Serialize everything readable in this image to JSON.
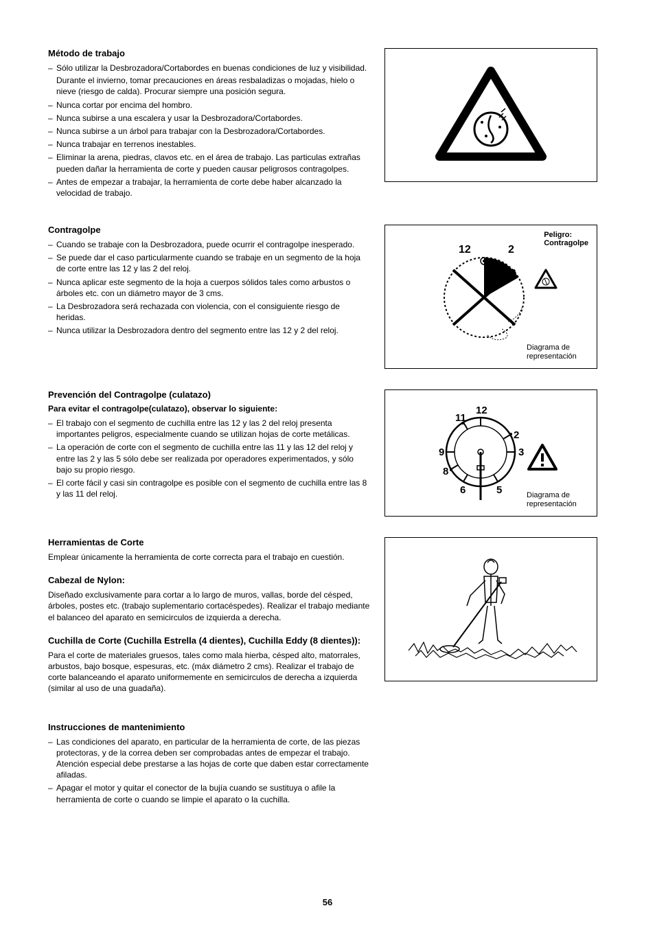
{
  "page_number": "56",
  "sections": {
    "metodo": {
      "heading": "Método de trabajo",
      "items": [
        "Sólo utilizar la Desbrozadora/Cortabordes en buenas condiciones de luz y visibilidad.<span class='bullet-continuation'>Durante el invierno, tomar precauciones en áreas resbaladizas o mojadas, hielo o nieve (riesgo de calda).  Procurar siempre una posición segura.</span>",
        "Nunca cortar por encima del hombro.",
        "Nunca subirse a una escalera y usar la Desbrozadora/Cortabordes.",
        "Nunca subirse a un árbol para trabajar con la Desbrozadora/Cortabordes.",
        "Nunca trabajar en terrenos inestables.",
        "Eliminar la arena, piedras, clavos etc. en el área de trabajo.  Las particulas extrañas pueden dañar la herramienta de corte y pueden causar peligrosos contragolpes.",
        "Antes de empezar a trabajar, la herramienta de corte debe haber alcanzado la velocidad de trabajo."
      ]
    },
    "contragolpe": {
      "heading": "Contragolpe",
      "items": [
        "Cuando se trabaje con la Desbrozadora, puede ocurrir el contragolpe inesperado.",
        "Se puede dar el caso particularmente cuando se trabaje en un segmento de la hoja de corte entre las 12 y las 2 del reloj.",
        "Nunca aplicar este segmento de la hoja a cuerpos sólidos tales como arbustos o árboles etc. con un diámetro mayor de 3 cms.",
        "La Desbrozadora será rechazada con violencia, con el consiguiente riesgo de heridas.",
        "Nunca utilizar la Desbrozadora dentro del segmento entre las 12 y 2 del reloj."
      ]
    },
    "prevencion": {
      "heading": "Prevención del Contragolpe (culatazo)",
      "subheading": "Para evitar el contragolpe(culatazo), observar lo siguiente:",
      "items": [
        "El trabajo con el segmento de cuchilla entre las 12 y las 2 del reloj presenta importantes peligros, especialmente cuando se utilizan hojas de corte metálicas.",
        "La operación de corte con el segmento de cuchilla entre las 11 y las 12 del reloj y entre las 2 y las 5 sólo debe ser realizada por operadores experimentados, y sólo bajo su propio riesgo.",
        "El corte fácil y casi sin contragolpe es posible con el segmento de cuchilla entre las 8 y las 11 del reloj."
      ]
    },
    "herramientas": {
      "heading": "Herramientas de Corte",
      "paragraph": "Emplear únicamente la herramienta de corte correcta para el trabajo en cuestión."
    },
    "cabezal": {
      "heading": "Cabezal de Nylon:",
      "paragraph": "Diseñado exclusivamente para cortar a lo largo de muros, vallas, borde del césped, árboles, postes etc. (trabajo suplementario cortacéspedes).  Realizar el trabajo mediante el balanceo del aparato en semicirculos de izquierda a derecha."
    },
    "cuchilla": {
      "heading": "Cuchilla de Corte (Cuchilla Estrella (4 dientes), Cuchilla Eddy (8 dientes)):",
      "paragraph": "Para el corte de materiales gruesos, tales como mala hierba, césped alto, matorrales, arbustos, bajo bosque, espesuras, etc. (máx diámetro 2 cms). Realizar el trabajo de corte balanceando el aparato uniformemente en semicirculos de derecha a izquierda (similar al uso de una guadaña)."
    },
    "instrucciones": {
      "heading": "Instrucciones de mantenimiento",
      "items": [
        "Las condiciones del aparato, en particular de la herramienta de corte, de las piezas protectoras, y de la correa deben ser comprobadas antes de empezar el trabajo.  Atención especial debe prestarse a las hojas de corte que daben estar correctamente afiladas.",
        "Apagar el motor y quitar el conector de la bujía cuando se sustituya o afile la herramienta de corte o cuando se limpie el aparato o la cuchilla."
      ]
    }
  },
  "figure2": {
    "label_line1": "Peligro:",
    "label_line2": "Contragolpe",
    "caption": "Diagrama de representación",
    "num12": "12",
    "num2": "2"
  },
  "figure3": {
    "caption": "Diagrama de representación",
    "nums": {
      "n12": "12",
      "n11": "11",
      "n2": "2",
      "n9": "9",
      "n3": "3",
      "n8": "8",
      "n6": "6",
      "n5": "5"
    }
  },
  "colors": {
    "text": "#000000",
    "background": "#ffffff",
    "border": "#000000"
  },
  "fonts": {
    "body_size": 12,
    "heading_size": 13,
    "caption_size": 11
  }
}
